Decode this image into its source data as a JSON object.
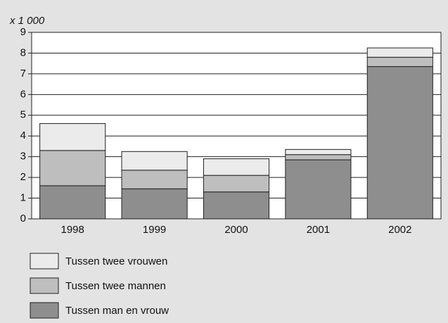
{
  "chart_data": {
    "type": "stacked_bar",
    "y_label": "x 1 000",
    "categories": [
      "1998",
      "1999",
      "2000",
      "2001",
      "2002"
    ],
    "series": [
      {
        "name": "Tussen man en vrouw",
        "color": "#8e8e8e",
        "values": [
          1.6,
          1.45,
          1.3,
          2.85,
          7.35
        ]
      },
      {
        "name": "Tussen twee mannen",
        "color": "#bebebe",
        "values": [
          1.7,
          0.9,
          0.8,
          0.25,
          0.45
        ]
      },
      {
        "name": "Tussen twee vrouwen",
        "color": "#ebebeb",
        "values": [
          1.3,
          0.9,
          0.8,
          0.25,
          0.45
        ]
      }
    ],
    "ylim": [
      0,
      9
    ],
    "yticks": [
      0,
      1,
      2,
      3,
      4,
      5,
      6,
      7,
      8,
      9
    ],
    "grid": true
  }
}
